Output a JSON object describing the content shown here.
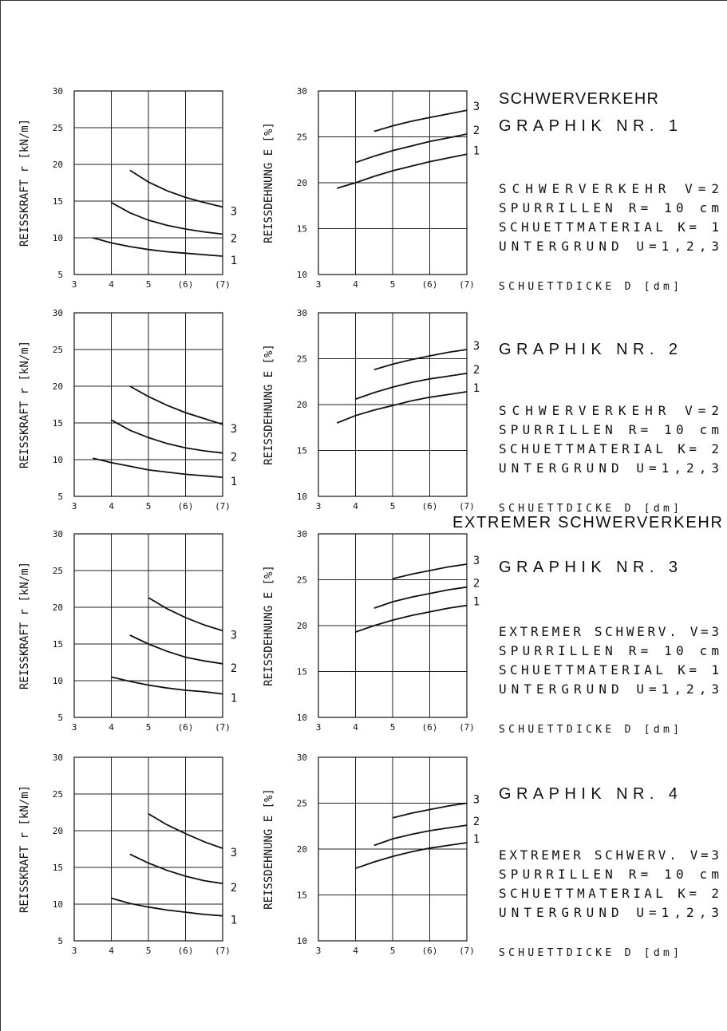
{
  "frames": [
    {
      "graphik_title": "GRAPHIK NR.  1",
      "heading": "SCHWERVERKEHR",
      "params": [
        "SCHWERVERKEHR     V=2",
        "SPURRILLEN  R= 10 cm",
        "SCHUETTMATERIAL K= 1",
        "UNTERGRUND    U=1,2,3"
      ],
      "xlabel": "SCHUETTDICKE  D [dm]"
    },
    {
      "graphik_title": "GRAPHIK NR.  2",
      "heading": "",
      "params": [
        "SCHWERVERKEHR     V=2",
        "SPURRILLEN  R= 10 cm",
        "SCHUETTMATERIAL K= 2",
        "UNTERGRUND    U=1,2,3"
      ],
      "xlabel": "SCHUETTDICKE  D [dm]"
    },
    {
      "graphik_title": "GRAPHIK NR.  3",
      "heading": "EXTREMER SCHWERVERKEHR",
      "params": [
        "EXTREMER SCHWERV. V=3",
        "SPURRILLEN  R= 10 cm",
        "SCHUETTMATERIAL K= 1",
        "UNTERGRUND    U=1,2,3"
      ],
      "xlabel": "SCHUETTDICKE  D [dm]"
    },
    {
      "graphik_title": "GRAPHIK NR.  4",
      "heading": "",
      "params": [
        "EXTREMER SCHWERV. V=3",
        "SPURRILLEN  R= 10 cm",
        "SCHUETTMATERIAL K= 2",
        "UNTERGRUND    U=1,2,3"
      ],
      "xlabel": "SCHUETTDICKE  D [dm]"
    }
  ],
  "chart_data": [
    {
      "type": "line",
      "ylabel": "REISSKRAFT  r  [kN/m]",
      "xlim": [
        3,
        7
      ],
      "ylim": [
        5,
        30
      ],
      "x_ticks": [
        "3",
        "4",
        "5",
        "(6)",
        "(7)"
      ],
      "y_ticks": [
        "5",
        "10",
        "15",
        "20",
        "25",
        "30"
      ],
      "series": [
        {
          "name": "1",
          "x": [
            3.5,
            4,
            4.5,
            5,
            5.5,
            6,
            6.5,
            7
          ],
          "y": [
            10.0,
            9.3,
            8.8,
            8.4,
            8.1,
            7.9,
            7.7,
            7.5
          ]
        },
        {
          "name": "2",
          "x": [
            4,
            4.5,
            5,
            5.5,
            6,
            6.5,
            7
          ],
          "y": [
            14.8,
            13.4,
            12.4,
            11.7,
            11.2,
            10.8,
            10.5
          ]
        },
        {
          "name": "3",
          "x": [
            4.5,
            5,
            5.5,
            6,
            6.5,
            7
          ],
          "y": [
            19.2,
            17.6,
            16.4,
            15.5,
            14.8,
            14.2
          ]
        }
      ]
    },
    {
      "type": "line",
      "ylabel": "REISSDEHNUNG E   [%]",
      "xlim": [
        3,
        7
      ],
      "ylim": [
        10,
        30
      ],
      "x_ticks": [
        "3",
        "4",
        "5",
        "(6)",
        "(7)"
      ],
      "y_ticks": [
        "10",
        "15",
        "20",
        "25",
        "30"
      ],
      "series": [
        {
          "name": "1",
          "x": [
            3.5,
            4,
            4.5,
            5,
            5.5,
            6,
            6.5,
            7
          ],
          "y": [
            19.4,
            20.0,
            20.7,
            21.3,
            21.8,
            22.3,
            22.7,
            23.1
          ]
        },
        {
          "name": "2",
          "x": [
            4,
            4.5,
            5,
            5.5,
            6,
            6.5,
            7
          ],
          "y": [
            22.2,
            22.9,
            23.5,
            24.0,
            24.5,
            24.9,
            25.3
          ]
        },
        {
          "name": "3",
          "x": [
            4.5,
            5,
            5.5,
            6,
            6.5,
            7
          ],
          "y": [
            25.6,
            26.2,
            26.7,
            27.1,
            27.5,
            27.9
          ]
        }
      ]
    },
    {
      "type": "line",
      "ylabel": "REISSKRAFT  r  [kN/m]",
      "xlim": [
        3,
        7
      ],
      "ylim": [
        5,
        30
      ],
      "x_ticks": [
        "3",
        "4",
        "5",
        "(6)",
        "(7)"
      ],
      "y_ticks": [
        "5",
        "10",
        "15",
        "20",
        "25",
        "30"
      ],
      "series": [
        {
          "name": "1",
          "x": [
            3.5,
            4,
            4.5,
            5,
            5.5,
            6,
            6.5,
            7
          ],
          "y": [
            10.2,
            9.6,
            9.1,
            8.6,
            8.3,
            8.0,
            7.8,
            7.6
          ]
        },
        {
          "name": "2",
          "x": [
            4,
            4.5,
            5,
            5.5,
            6,
            6.5,
            7
          ],
          "y": [
            15.4,
            14.0,
            13.0,
            12.2,
            11.6,
            11.2,
            10.9
          ]
        },
        {
          "name": "3",
          "x": [
            4.5,
            5,
            5.5,
            6,
            6.5,
            7
          ],
          "y": [
            20.0,
            18.6,
            17.4,
            16.4,
            15.6,
            14.8
          ]
        }
      ]
    },
    {
      "type": "line",
      "ylabel": "REISSDEHNUNG E   [%]",
      "xlim": [
        3,
        7
      ],
      "ylim": [
        10,
        30
      ],
      "x_ticks": [
        "3",
        "4",
        "5",
        "(6)",
        "(7)"
      ],
      "y_ticks": [
        "10",
        "15",
        "20",
        "25",
        "30"
      ],
      "series": [
        {
          "name": "1",
          "x": [
            3.5,
            4,
            4.5,
            5,
            5.5,
            6,
            6.5,
            7
          ],
          "y": [
            18.0,
            18.8,
            19.4,
            19.9,
            20.4,
            20.8,
            21.1,
            21.4
          ]
        },
        {
          "name": "2",
          "x": [
            4,
            4.5,
            5,
            5.5,
            6,
            6.5,
            7
          ],
          "y": [
            20.6,
            21.3,
            21.9,
            22.4,
            22.8,
            23.1,
            23.4
          ]
        },
        {
          "name": "3",
          "x": [
            4.5,
            5,
            5.5,
            6,
            6.5,
            7
          ],
          "y": [
            23.8,
            24.4,
            24.9,
            25.3,
            25.7,
            26.0
          ]
        }
      ]
    },
    {
      "type": "line",
      "ylabel": "REISSKRAFT  r  [kN/m]",
      "xlim": [
        3,
        7
      ],
      "ylim": [
        5,
        30
      ],
      "x_ticks": [
        "3",
        "4",
        "5",
        "(6)",
        "(7)"
      ],
      "y_ticks": [
        "5",
        "10",
        "15",
        "20",
        "25",
        "30"
      ],
      "series": [
        {
          "name": "1",
          "x": [
            4,
            4.5,
            5,
            5.5,
            6,
            6.5,
            7
          ],
          "y": [
            10.5,
            9.9,
            9.4,
            9.0,
            8.7,
            8.5,
            8.2
          ]
        },
        {
          "name": "2",
          "x": [
            4.5,
            5,
            5.5,
            6,
            6.5,
            7
          ],
          "y": [
            16.2,
            15.0,
            14.0,
            13.2,
            12.7,
            12.3
          ]
        },
        {
          "name": "3",
          "x": [
            5,
            5.5,
            6,
            6.5,
            7
          ],
          "y": [
            21.3,
            19.8,
            18.6,
            17.6,
            16.8
          ]
        }
      ]
    },
    {
      "type": "line",
      "ylabel": "REISSDEHNUNG E   [%]",
      "xlim": [
        3,
        7
      ],
      "ylim": [
        10,
        30
      ],
      "x_ticks": [
        "3",
        "4",
        "5",
        "(6)",
        "(7)"
      ],
      "y_ticks": [
        "10",
        "15",
        "20",
        "25",
        "30"
      ],
      "series": [
        {
          "name": "1",
          "x": [
            4,
            4.5,
            5,
            5.5,
            6,
            6.5,
            7
          ],
          "y": [
            19.3,
            20.0,
            20.6,
            21.1,
            21.5,
            21.9,
            22.2
          ]
        },
        {
          "name": "2",
          "x": [
            4.5,
            5,
            5.5,
            6,
            6.5,
            7
          ],
          "y": [
            21.9,
            22.6,
            23.1,
            23.5,
            23.9,
            24.2
          ]
        },
        {
          "name": "3",
          "x": [
            5,
            5.5,
            6,
            6.5,
            7
          ],
          "y": [
            25.1,
            25.6,
            26.0,
            26.4,
            26.7
          ]
        }
      ]
    },
    {
      "type": "line",
      "ylabel": "REISSKRAFT  r  [kN/m]",
      "xlim": [
        3,
        7
      ],
      "ylim": [
        5,
        30
      ],
      "x_ticks": [
        "3",
        "4",
        "5",
        "(6)",
        "(7)"
      ],
      "y_ticks": [
        "5",
        "10",
        "15",
        "20",
        "25",
        "30"
      ],
      "series": [
        {
          "name": "1",
          "x": [
            4,
            4.5,
            5,
            5.5,
            6,
            6.5,
            7
          ],
          "y": [
            10.8,
            10.1,
            9.6,
            9.2,
            8.9,
            8.6,
            8.4
          ]
        },
        {
          "name": "2",
          "x": [
            4.5,
            5,
            5.5,
            6,
            6.5,
            7
          ],
          "y": [
            16.8,
            15.6,
            14.6,
            13.8,
            13.2,
            12.8
          ]
        },
        {
          "name": "3",
          "x": [
            5,
            5.5,
            6,
            6.5,
            7
          ],
          "y": [
            22.3,
            20.8,
            19.6,
            18.5,
            17.6
          ]
        }
      ]
    },
    {
      "type": "line",
      "ylabel": "REISSDEHNUNG E   [%]",
      "xlim": [
        3,
        7
      ],
      "ylim": [
        10,
        30
      ],
      "x_ticks": [
        "3",
        "4",
        "5",
        "(6)",
        "(7)"
      ],
      "y_ticks": [
        "10",
        "15",
        "20",
        "25",
        "30"
      ],
      "series": [
        {
          "name": "1",
          "x": [
            4,
            4.5,
            5,
            5.5,
            6,
            6.5,
            7
          ],
          "y": [
            17.9,
            18.6,
            19.2,
            19.7,
            20.1,
            20.4,
            20.7
          ]
        },
        {
          "name": "2",
          "x": [
            4.5,
            5,
            5.5,
            6,
            6.5,
            7
          ],
          "y": [
            20.4,
            21.1,
            21.6,
            22.0,
            22.3,
            22.6
          ]
        },
        {
          "name": "3",
          "x": [
            5,
            5.5,
            6,
            6.5,
            7
          ],
          "y": [
            23.4,
            23.9,
            24.3,
            24.7,
            25.0
          ]
        }
      ]
    }
  ]
}
